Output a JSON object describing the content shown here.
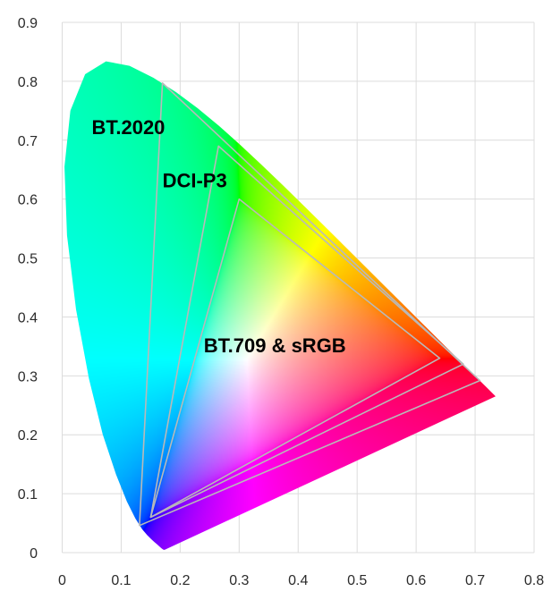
{
  "chart_data": {
    "type": "scatter",
    "title": "",
    "xlabel": "",
    "ylabel": "",
    "xlim": [
      0,
      0.8
    ],
    "ylim": [
      0,
      0.9
    ],
    "grid": true,
    "x_ticks": [
      "0",
      "0.1",
      "0.2",
      "0.3",
      "0.4",
      "0.5",
      "0.6",
      "0.7",
      "0.8"
    ],
    "y_ticks": [
      "0",
      "0.1",
      "0.2",
      "0.3",
      "0.4",
      "0.5",
      "0.6",
      "0.7",
      "0.8",
      "0.9"
    ],
    "spectral_locus": [
      [
        0.1741,
        0.005
      ],
      [
        0.174,
        0.005
      ],
      [
        0.1738,
        0.0049
      ],
      [
        0.1736,
        0.0049
      ],
      [
        0.1733,
        0.0048
      ],
      [
        0.173,
        0.0048
      ],
      [
        0.1726,
        0.0048
      ],
      [
        0.1721,
        0.0048
      ],
      [
        0.1714,
        0.0051
      ],
      [
        0.1703,
        0.0058
      ],
      [
        0.1689,
        0.0069
      ],
      [
        0.1669,
        0.0086
      ],
      [
        0.1644,
        0.0109
      ],
      [
        0.1611,
        0.0138
      ],
      [
        0.1566,
        0.0177
      ],
      [
        0.151,
        0.0227
      ],
      [
        0.144,
        0.0297
      ],
      [
        0.1355,
        0.0399
      ],
      [
        0.1241,
        0.0578
      ],
      [
        0.1096,
        0.0868
      ],
      [
        0.0913,
        0.1327
      ],
      [
        0.0687,
        0.2007
      ],
      [
        0.0454,
        0.295
      ],
      [
        0.0235,
        0.4127
      ],
      [
        0.0082,
        0.5384
      ],
      [
        0.0039,
        0.6548
      ],
      [
        0.0139,
        0.7502
      ],
      [
        0.0389,
        0.812
      ],
      [
        0.0743,
        0.8338
      ],
      [
        0.1142,
        0.8262
      ],
      [
        0.1547,
        0.8059
      ],
      [
        0.1929,
        0.7816
      ],
      [
        0.2296,
        0.7543
      ],
      [
        0.2658,
        0.7243
      ],
      [
        0.3016,
        0.6923
      ],
      [
        0.3373,
        0.6589
      ],
      [
        0.3731,
        0.6245
      ],
      [
        0.4087,
        0.5896
      ],
      [
        0.4441,
        0.5547
      ],
      [
        0.4788,
        0.5202
      ],
      [
        0.5125,
        0.4866
      ],
      [
        0.5448,
        0.4544
      ],
      [
        0.5752,
        0.4242
      ],
      [
        0.6029,
        0.3965
      ],
      [
        0.627,
        0.3725
      ],
      [
        0.6482,
        0.3514
      ],
      [
        0.6658,
        0.334
      ],
      [
        0.6801,
        0.3197
      ],
      [
        0.6915,
        0.3083
      ],
      [
        0.7006,
        0.2993
      ],
      [
        0.7079,
        0.292
      ],
      [
        0.714,
        0.2859
      ],
      [
        0.719,
        0.2809
      ],
      [
        0.723,
        0.277
      ],
      [
        0.726,
        0.274
      ],
      [
        0.7283,
        0.2717
      ],
      [
        0.73,
        0.27
      ],
      [
        0.7311,
        0.2689
      ],
      [
        0.732,
        0.268
      ],
      [
        0.7327,
        0.2673
      ],
      [
        0.7334,
        0.2666
      ],
      [
        0.734,
        0.266
      ],
      [
        0.7344,
        0.2656
      ],
      [
        0.7346,
        0.2654
      ],
      [
        0.7347,
        0.2653
      ]
    ],
    "series": [
      {
        "name": "BT.2020",
        "label_x": 0.05,
        "label_y": 0.71,
        "points": [
          [
            0.708,
            0.292
          ],
          [
            0.17,
            0.797
          ],
          [
            0.131,
            0.046
          ]
        ]
      },
      {
        "name": "DCI-P3",
        "label_x": 0.17,
        "label_y": 0.62,
        "points": [
          [
            0.68,
            0.32
          ],
          [
            0.265,
            0.69
          ],
          [
            0.15,
            0.06
          ]
        ]
      },
      {
        "name": "BT.709 & sRGB",
        "label_x": 0.24,
        "label_y": 0.34,
        "points": [
          [
            0.64,
            0.33
          ],
          [
            0.3,
            0.6
          ],
          [
            0.15,
            0.06
          ]
        ]
      }
    ],
    "colors": {
      "triangle_stroke": "#b9b9b9",
      "grid": "#dcdcdc",
      "tick_text": "#2b2b2b",
      "label_text": "#000000"
    }
  }
}
